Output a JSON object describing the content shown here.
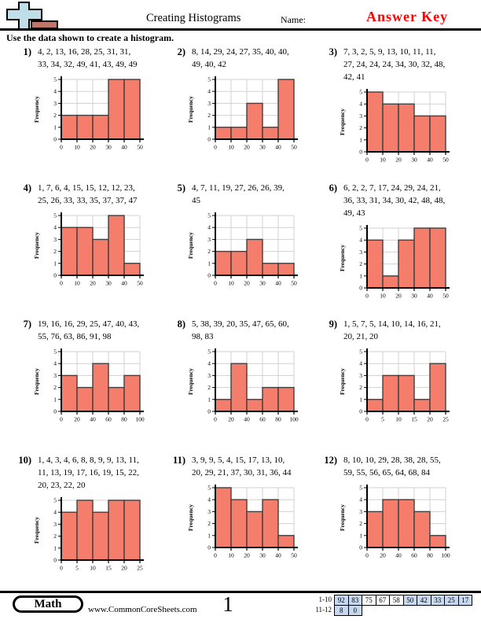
{
  "header": {
    "title": "Creating Histograms",
    "name_label": "Name:",
    "answer_key": "Answer Key",
    "instruction": "Use the data shown to create a histogram."
  },
  "colors": {
    "answer_key_red": "#ff0000",
    "bar_fill": "#f57d6c",
    "bar_border": "#3f3f3f",
    "grid_line": "#d0d0d0",
    "axis": "#000000",
    "shaded_cell": "#c6d9f1",
    "logo_plus": "#bfdfe8",
    "logo_rect": "#c0756b"
  },
  "problems": [
    {
      "num": "1)",
      "data_lines": [
        "4, 2, 13, 16, 28, 25, 31, 31,",
        "33, 34, 32, 49, 41, 43, 49, 49"
      ],
      "chart_data": {
        "type": "bar",
        "ylabel": "Frequency",
        "ylim": [
          0,
          5
        ],
        "yticks": [
          0,
          1,
          2,
          3,
          4,
          5
        ],
        "bin_edges": [
          0,
          10,
          20,
          30,
          40,
          50
        ],
        "frequencies": [
          2,
          2,
          2,
          5,
          5
        ]
      }
    },
    {
      "num": "2)",
      "data_lines": [
        "8, 14, 29, 24, 27, 35, 40, 40,",
        "49, 40, 42"
      ],
      "chart_data": {
        "type": "bar",
        "ylabel": "Frequency",
        "ylim": [
          0,
          5
        ],
        "yticks": [
          0,
          1,
          2,
          3,
          4,
          5
        ],
        "bin_edges": [
          0,
          10,
          20,
          30,
          40,
          50
        ],
        "frequencies": [
          1,
          1,
          3,
          1,
          5
        ]
      }
    },
    {
      "num": "3)",
      "data_lines": [
        "7, 3, 2, 5, 9, 13, 10, 11, 11,",
        "27, 24, 24, 24, 34, 30, 32, 48,",
        "42, 41"
      ],
      "chart_data": {
        "type": "bar",
        "ylabel": "Frequency",
        "ylim": [
          0,
          5
        ],
        "yticks": [
          0,
          1,
          2,
          3,
          4,
          5
        ],
        "bin_edges": [
          0,
          10,
          20,
          30,
          40,
          50
        ],
        "frequencies": [
          5,
          4,
          4,
          3,
          3
        ]
      }
    },
    {
      "num": "4)",
      "data_lines": [
        "1, 7, 6, 4, 15, 15, 12, 12, 23,",
        "25, 26, 33, 33, 35, 37, 37, 47"
      ],
      "chart_data": {
        "type": "bar",
        "ylabel": "Frequency",
        "ylim": [
          0,
          5
        ],
        "yticks": [
          0,
          1,
          2,
          3,
          4,
          5
        ],
        "bin_edges": [
          0,
          10,
          20,
          30,
          40,
          50
        ],
        "frequencies": [
          4,
          4,
          3,
          5,
          1
        ]
      }
    },
    {
      "num": "5)",
      "data_lines": [
        "4, 7, 11, 19, 27, 26, 26, 39,",
        "45"
      ],
      "chart_data": {
        "type": "bar",
        "ylabel": "Frequency",
        "ylim": [
          0,
          5
        ],
        "yticks": [
          0,
          1,
          2,
          3,
          4,
          5
        ],
        "bin_edges": [
          0,
          10,
          20,
          30,
          40,
          50
        ],
        "frequencies": [
          2,
          2,
          3,
          1,
          1
        ]
      }
    },
    {
      "num": "6)",
      "data_lines": [
        "6, 2, 2, 7, 17, 24, 29, 24, 21,",
        "36, 33, 31, 34, 30, 42, 48, 48,",
        "49, 43"
      ],
      "chart_data": {
        "type": "bar",
        "ylabel": "Frequency",
        "ylim": [
          0,
          5
        ],
        "yticks": [
          0,
          1,
          2,
          3,
          4,
          5
        ],
        "bin_edges": [
          0,
          10,
          20,
          30,
          40,
          50
        ],
        "frequencies": [
          4,
          1,
          4,
          5,
          5
        ]
      }
    },
    {
      "num": "7)",
      "data_lines": [
        "19, 16, 16, 29, 25, 47, 40, 43,",
        "55, 76, 63, 86, 91, 98"
      ],
      "chart_data": {
        "type": "bar",
        "ylabel": "Frequency",
        "ylim": [
          0,
          5
        ],
        "yticks": [
          0,
          1,
          2,
          3,
          4,
          5
        ],
        "bin_edges": [
          0,
          20,
          40,
          60,
          80,
          100
        ],
        "frequencies": [
          3,
          2,
          4,
          2,
          3
        ]
      }
    },
    {
      "num": "8)",
      "data_lines": [
        "5, 38, 39, 20, 35, 47, 65, 60,",
        "98, 83"
      ],
      "chart_data": {
        "type": "bar",
        "ylabel": "Frequency",
        "ylim": [
          0,
          5
        ],
        "yticks": [
          0,
          1,
          2,
          3,
          4,
          5
        ],
        "bin_edges": [
          0,
          20,
          40,
          60,
          80,
          100
        ],
        "frequencies": [
          1,
          4,
          1,
          2,
          2
        ]
      }
    },
    {
      "num": "9)",
      "data_lines": [
        "1, 5, 7, 5, 14, 10, 14, 16, 21,",
        "20, 21, 20"
      ],
      "chart_data": {
        "type": "bar",
        "ylabel": "Frequency",
        "ylim": [
          0,
          5
        ],
        "yticks": [
          0,
          1,
          2,
          3,
          4,
          5
        ],
        "bin_edges": [
          0,
          5,
          10,
          15,
          20,
          25
        ],
        "frequencies": [
          1,
          3,
          3,
          1,
          4
        ]
      }
    },
    {
      "num": "10)",
      "data_lines": [
        "1, 4, 3, 4, 6, 8, 8, 9, 9, 13, 11,",
        "11, 13, 19, 17, 16, 19, 15, 22,",
        "20, 23, 22, 20"
      ],
      "chart_data": {
        "type": "bar",
        "ylabel": "Frequency",
        "ylim": [
          0,
          5
        ],
        "yticks": [
          0,
          1,
          2,
          3,
          4,
          5
        ],
        "bin_edges": [
          0,
          5,
          10,
          15,
          20,
          25
        ],
        "frequencies": [
          4,
          5,
          4,
          5,
          5
        ]
      }
    },
    {
      "num": "11)",
      "data_lines": [
        "3, 9, 9, 5, 4, 15, 17, 13, 10,",
        "20, 29, 21, 37, 30, 31, 36, 44"
      ],
      "chart_data": {
        "type": "bar",
        "ylabel": "Frequency",
        "ylim": [
          0,
          5
        ],
        "yticks": [
          0,
          1,
          2,
          3,
          4,
          5
        ],
        "bin_edges": [
          0,
          10,
          20,
          30,
          40,
          50
        ],
        "frequencies": [
          5,
          4,
          3,
          4,
          1
        ]
      }
    },
    {
      "num": "12)",
      "data_lines": [
        "8, 10, 10, 29, 28, 38, 28, 55,",
        "59, 55, 56, 65, 64, 68, 84"
      ],
      "chart_data": {
        "type": "bar",
        "ylabel": "Frequency",
        "ylim": [
          0,
          5
        ],
        "yticks": [
          0,
          1,
          2,
          3,
          4,
          5
        ],
        "bin_edges": [
          0,
          20,
          40,
          60,
          80,
          100
        ],
        "frequencies": [
          3,
          4,
          4,
          3,
          1
        ]
      }
    }
  ],
  "footer": {
    "subject_badge": "Math",
    "website": "www.CommonCoreSheets.com",
    "page_number": "1",
    "score_table": {
      "rows": [
        {
          "label": "1-10",
          "cells": [
            {
              "v": "92",
              "shaded": true
            },
            {
              "v": "83",
              "shaded": true
            },
            {
              "v": "75",
              "shaded": false
            },
            {
              "v": "67",
              "shaded": false
            },
            {
              "v": "58",
              "shaded": false
            },
            {
              "v": "50",
              "shaded": true
            },
            {
              "v": "42",
              "shaded": true
            },
            {
              "v": "33",
              "shaded": true
            },
            {
              "v": "25",
              "shaded": true
            },
            {
              "v": "17",
              "shaded": true
            }
          ]
        },
        {
          "label": "11-12",
          "cells": [
            {
              "v": "8",
              "shaded": true
            },
            {
              "v": "0",
              "shaded": true
            }
          ]
        }
      ]
    }
  }
}
